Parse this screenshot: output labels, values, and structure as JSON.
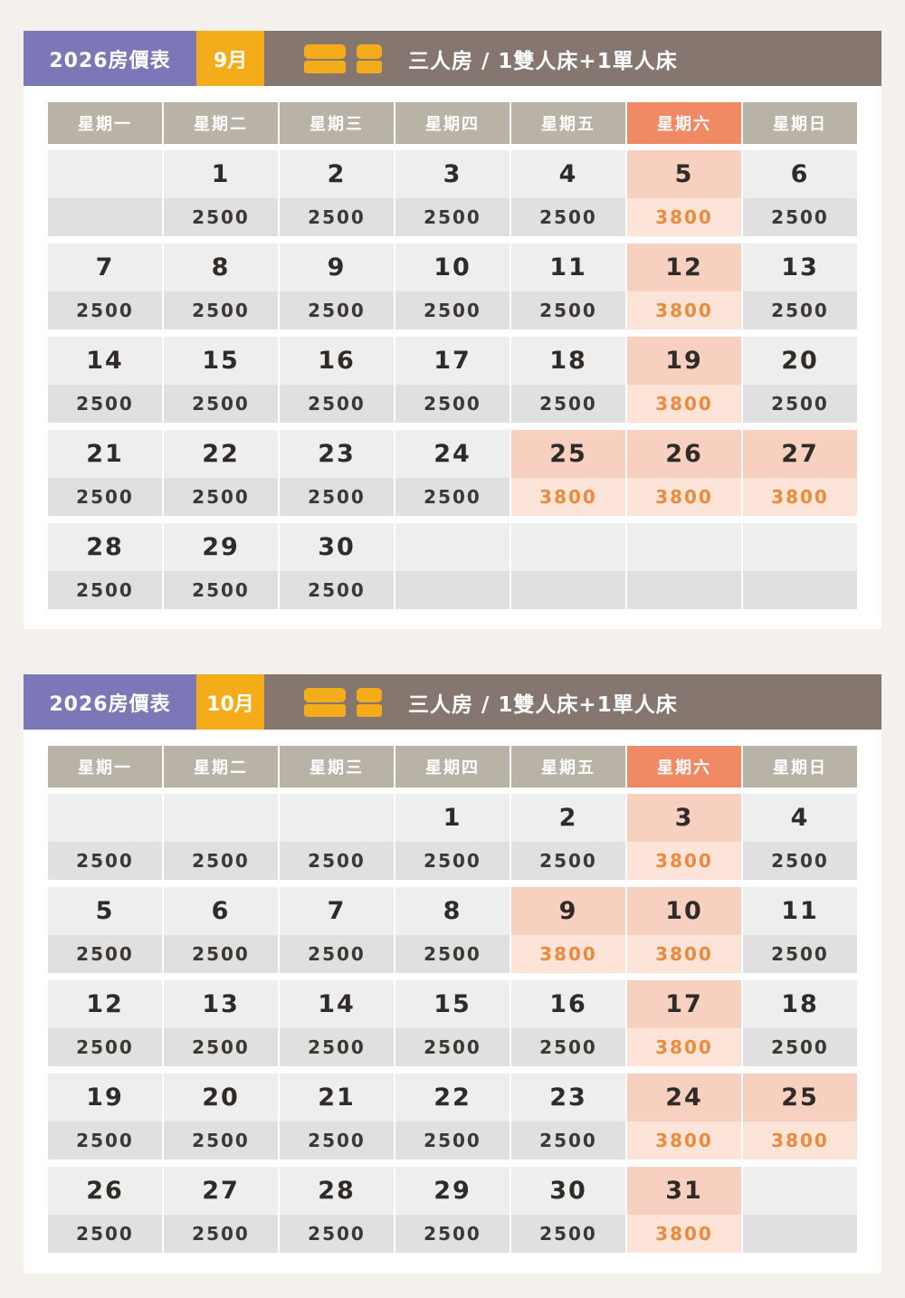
{
  "year_label": "2026房價表",
  "room_type": "三人房 / 1雙人床+1單人床",
  "icon": "bed-icon",
  "colors": {
    "year_bg": "#7c77b6",
    "month_bg": "#f5ac1b",
    "header_bg": "#85776f",
    "weekday_bg": "#b8b2a7",
    "saturday_bg": "#ef8a64",
    "highlight_price": "#ec8a3c"
  },
  "weekdays": [
    "星期一",
    "星期二",
    "星期三",
    "星期四",
    "星期五",
    "星期六",
    "星期日"
  ],
  "calendars": [
    {
      "id": "sep",
      "month": "9月",
      "weeks": [
        [
          {
            "day": "",
            "price": ""
          },
          {
            "day": "1",
            "price": "2500"
          },
          {
            "day": "2",
            "price": "2500"
          },
          {
            "day": "3",
            "price": "2500"
          },
          {
            "day": "4",
            "price": "2500"
          },
          {
            "day": "5",
            "price": "3800",
            "hl": true
          },
          {
            "day": "6",
            "price": "2500"
          }
        ],
        [
          {
            "day": "7",
            "price": "2500"
          },
          {
            "day": "8",
            "price": "2500"
          },
          {
            "day": "9",
            "price": "2500"
          },
          {
            "day": "10",
            "price": "2500"
          },
          {
            "day": "11",
            "price": "2500"
          },
          {
            "day": "12",
            "price": "3800",
            "hl": true
          },
          {
            "day": "13",
            "price": "2500"
          }
        ],
        [
          {
            "day": "14",
            "price": "2500"
          },
          {
            "day": "15",
            "price": "2500"
          },
          {
            "day": "16",
            "price": "2500"
          },
          {
            "day": "17",
            "price": "2500"
          },
          {
            "day": "18",
            "price": "2500"
          },
          {
            "day": "19",
            "price": "3800",
            "hl": true
          },
          {
            "day": "20",
            "price": "2500"
          }
        ],
        [
          {
            "day": "21",
            "price": "2500"
          },
          {
            "day": "22",
            "price": "2500"
          },
          {
            "day": "23",
            "price": "2500"
          },
          {
            "day": "24",
            "price": "2500"
          },
          {
            "day": "25",
            "price": "3800",
            "hl": true
          },
          {
            "day": "26",
            "price": "3800",
            "hl": true
          },
          {
            "day": "27",
            "price": "3800",
            "hl": true
          }
        ],
        [
          {
            "day": "28",
            "price": "2500"
          },
          {
            "day": "29",
            "price": "2500"
          },
          {
            "day": "30",
            "price": "2500"
          },
          {
            "day": "",
            "price": ""
          },
          {
            "day": "",
            "price": ""
          },
          {
            "day": "",
            "price": ""
          },
          {
            "day": "",
            "price": ""
          }
        ]
      ]
    },
    {
      "id": "oct",
      "month": "10月",
      "weeks": [
        [
          {
            "day": "",
            "price": "2500"
          },
          {
            "day": "",
            "price": "2500"
          },
          {
            "day": "",
            "price": "2500"
          },
          {
            "day": "1",
            "price": "2500"
          },
          {
            "day": "2",
            "price": "2500"
          },
          {
            "day": "3",
            "price": "3800",
            "hl": true
          },
          {
            "day": "4",
            "price": "2500"
          }
        ],
        [
          {
            "day": "5",
            "price": "2500"
          },
          {
            "day": "6",
            "price": "2500"
          },
          {
            "day": "7",
            "price": "2500"
          },
          {
            "day": "8",
            "price": "2500"
          },
          {
            "day": "9",
            "price": "3800",
            "hl": true
          },
          {
            "day": "10",
            "price": "3800",
            "hl": true
          },
          {
            "day": "11",
            "price": "2500"
          }
        ],
        [
          {
            "day": "12",
            "price": "2500"
          },
          {
            "day": "13",
            "price": "2500"
          },
          {
            "day": "14",
            "price": "2500"
          },
          {
            "day": "15",
            "price": "2500"
          },
          {
            "day": "16",
            "price": "2500"
          },
          {
            "day": "17",
            "price": "3800",
            "hl": true
          },
          {
            "day": "18",
            "price": "2500"
          }
        ],
        [
          {
            "day": "19",
            "price": "2500"
          },
          {
            "day": "20",
            "price": "2500"
          },
          {
            "day": "21",
            "price": "2500"
          },
          {
            "day": "22",
            "price": "2500"
          },
          {
            "day": "23",
            "price": "2500"
          },
          {
            "day": "24",
            "price": "3800",
            "hl": true
          },
          {
            "day": "25",
            "price": "3800",
            "hl": true
          }
        ],
        [
          {
            "day": "26",
            "price": "2500"
          },
          {
            "day": "27",
            "price": "2500"
          },
          {
            "day": "28",
            "price": "2500"
          },
          {
            "day": "29",
            "price": "2500"
          },
          {
            "day": "30",
            "price": "2500"
          },
          {
            "day": "31",
            "price": "3800",
            "hl": true
          },
          {
            "day": "",
            "price": ""
          }
        ]
      ]
    }
  ]
}
